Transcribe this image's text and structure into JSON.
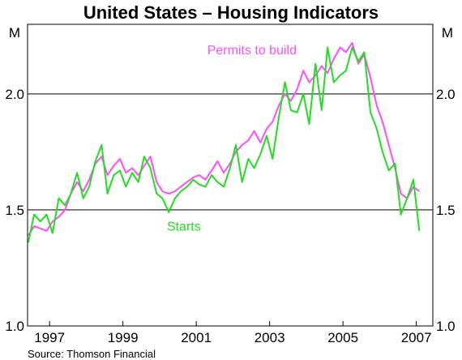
{
  "chart_data": {
    "type": "line",
    "title": "United States – Housing Indicators",
    "unit_left": "M",
    "unit_right": "M",
    "source": "Source: Thomson Financial",
    "xlim": [
      1996.4,
      2007.45
    ],
    "ylim": [
      1.0,
      2.3
    ],
    "xticks": [
      {
        "value": 1997,
        "label": "1997"
      },
      {
        "value": 1999,
        "label": "1999"
      },
      {
        "value": 2001,
        "label": "2001"
      },
      {
        "value": 2003,
        "label": "2003"
      },
      {
        "value": 2005,
        "label": "2005"
      },
      {
        "value": 2007,
        "label": "2007"
      }
    ],
    "yticks": [
      {
        "value": 1.0,
        "label": "1.0"
      },
      {
        "value": 1.5,
        "label": "1.5"
      },
      {
        "value": 2.0,
        "label": "2.0"
      }
    ],
    "gridlines_y": [
      1.5,
      2.0
    ],
    "series": [
      {
        "name": "Permits to build",
        "color": "#ff4cff",
        "label_pos": [
          2001.3,
          2.17
        ],
        "x": [
          1996.42,
          1996.58,
          1996.75,
          1996.92,
          1997.08,
          1997.25,
          1997.42,
          1997.58,
          1997.75,
          1997.92,
          1998.08,
          1998.25,
          1998.42,
          1998.58,
          1998.75,
          1998.92,
          1999.08,
          1999.25,
          1999.42,
          1999.58,
          1999.75,
          1999.92,
          2000.08,
          2000.25,
          2000.42,
          2000.58,
          2000.75,
          2000.92,
          2001.08,
          2001.25,
          2001.42,
          2001.58,
          2001.75,
          2001.92,
          2002.08,
          2002.25,
          2002.42,
          2002.58,
          2002.75,
          2002.92,
          2003.08,
          2003.25,
          2003.42,
          2003.58,
          2003.75,
          2003.92,
          2004.08,
          2004.25,
          2004.42,
          2004.58,
          2004.75,
          2004.92,
          2005.08,
          2005.25,
          2005.42,
          2005.58,
          2005.75,
          2005.92,
          2006.08,
          2006.25,
          2006.42,
          2006.58,
          2006.75,
          2006.92,
          2007.08
        ],
        "values": [
          1.39,
          1.43,
          1.42,
          1.41,
          1.45,
          1.47,
          1.5,
          1.57,
          1.62,
          1.58,
          1.63,
          1.7,
          1.73,
          1.65,
          1.69,
          1.72,
          1.66,
          1.68,
          1.65,
          1.69,
          1.73,
          1.62,
          1.58,
          1.57,
          1.58,
          1.6,
          1.62,
          1.64,
          1.65,
          1.63,
          1.67,
          1.71,
          1.66,
          1.7,
          1.75,
          1.78,
          1.8,
          1.84,
          1.79,
          1.85,
          1.88,
          1.95,
          2.0,
          1.97,
          2.02,
          2.1,
          2.05,
          2.08,
          2.12,
          2.09,
          2.15,
          2.2,
          2.18,
          2.22,
          2.13,
          2.17,
          2.07,
          1.95,
          1.88,
          1.78,
          1.68,
          1.57,
          1.55,
          1.6,
          1.58
        ]
      },
      {
        "name": "Starts",
        "color": "#22dd22",
        "label_pos": [
          2000.2,
          1.41
        ],
        "x": [
          1996.42,
          1996.58,
          1996.75,
          1996.92,
          1997.08,
          1997.25,
          1997.42,
          1997.58,
          1997.75,
          1997.92,
          1998.08,
          1998.25,
          1998.42,
          1998.58,
          1998.75,
          1998.92,
          1999.08,
          1999.25,
          1999.42,
          1999.58,
          1999.75,
          1999.92,
          2000.08,
          2000.25,
          2000.42,
          2000.58,
          2000.75,
          2000.92,
          2001.08,
          2001.25,
          2001.42,
          2001.58,
          2001.75,
          2001.92,
          2002.08,
          2002.25,
          2002.42,
          2002.58,
          2002.75,
          2002.92,
          2003.08,
          2003.25,
          2003.42,
          2003.58,
          2003.75,
          2003.92,
          2004.08,
          2004.25,
          2004.42,
          2004.58,
          2004.75,
          2004.92,
          2005.08,
          2005.25,
          2005.42,
          2005.58,
          2005.75,
          2005.92,
          2006.08,
          2006.25,
          2006.42,
          2006.58,
          2006.75,
          2006.92,
          2007.08
        ],
        "values": [
          1.36,
          1.48,
          1.45,
          1.48,
          1.4,
          1.55,
          1.52,
          1.57,
          1.66,
          1.55,
          1.6,
          1.71,
          1.78,
          1.57,
          1.65,
          1.67,
          1.6,
          1.66,
          1.62,
          1.73,
          1.68,
          1.57,
          1.55,
          1.49,
          1.55,
          1.58,
          1.6,
          1.63,
          1.61,
          1.6,
          1.65,
          1.62,
          1.6,
          1.68,
          1.78,
          1.62,
          1.72,
          1.68,
          1.74,
          1.82,
          1.72,
          1.9,
          2.05,
          1.93,
          1.92,
          2.0,
          1.87,
          2.13,
          1.93,
          2.2,
          2.05,
          2.08,
          2.1,
          2.2,
          2.14,
          2.18,
          1.92,
          1.85,
          1.75,
          1.67,
          1.7,
          1.48,
          1.55,
          1.63,
          1.41
        ]
      }
    ]
  }
}
